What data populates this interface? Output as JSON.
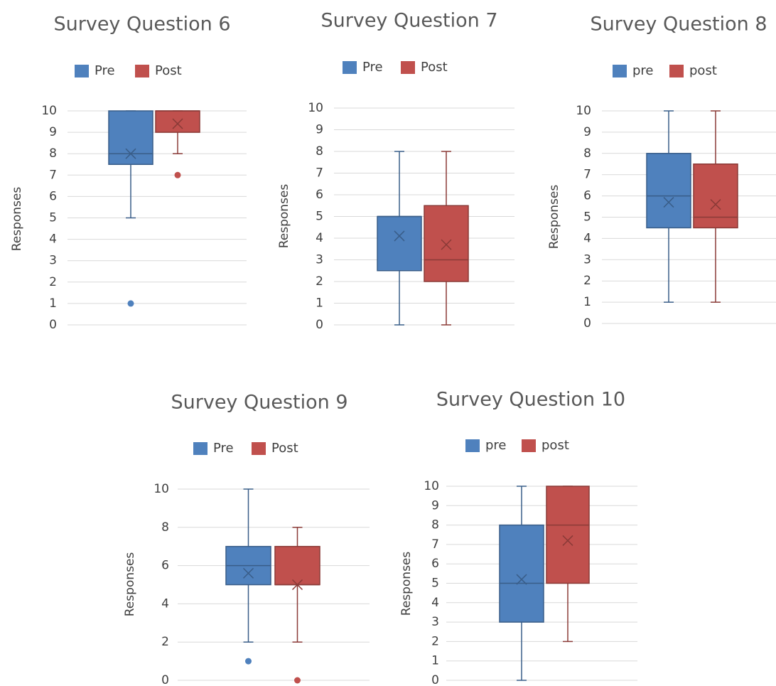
{
  "colors": {
    "pre": "#4F81BD",
    "post": "#C0504D",
    "grid": "#D9D9D9"
  },
  "chart_data": [
    {
      "type": "boxplot",
      "title": "Survey Question 6",
      "ylabel": "Responses",
      "ylim": [
        0,
        10
      ],
      "yticks": [
        "0",
        "1",
        "2",
        "3",
        "4",
        "5",
        "6",
        "7",
        "8",
        "9",
        "10"
      ],
      "legend": "top",
      "grid": true,
      "series": [
        {
          "name": "Pre",
          "min": 5,
          "q1": 7.5,
          "median": 8,
          "q3": 10,
          "max": 10,
          "mean": 8,
          "outliers": [
            1
          ]
        },
        {
          "name": "Post",
          "min": 8,
          "q1": 9,
          "median": 10,
          "q3": 10,
          "max": 10,
          "mean": 9.4,
          "outliers": [
            7
          ]
        }
      ]
    },
    {
      "type": "boxplot",
      "title": "Survey Question 7",
      "ylabel": "Responses",
      "ylim": [
        0,
        10
      ],
      "yticks": [
        "0",
        "1",
        "2",
        "3",
        "4",
        "5",
        "6",
        "7",
        "8",
        "9",
        "10"
      ],
      "legend": "top",
      "grid": true,
      "series": [
        {
          "name": "Pre",
          "min": 0,
          "q1": 2.5,
          "median": 5,
          "q3": 5,
          "max": 8,
          "mean": 4.1,
          "outliers": []
        },
        {
          "name": "Post",
          "min": 0,
          "q1": 2,
          "median": 3,
          "q3": 5.5,
          "max": 8,
          "mean": 3.7,
          "outliers": []
        }
      ]
    },
    {
      "type": "boxplot",
      "title": "Survey Question 8",
      "ylabel": "Responses",
      "ylim": [
        0,
        10
      ],
      "yticks": [
        "0",
        "1",
        "2",
        "3",
        "4",
        "5",
        "6",
        "7",
        "8",
        "9",
        "10"
      ],
      "legend": "top",
      "grid": true,
      "series": [
        {
          "name": "pre",
          "min": 1,
          "q1": 4.5,
          "median": 6,
          "q3": 8,
          "max": 10,
          "mean": 5.7,
          "outliers": []
        },
        {
          "name": "post",
          "min": 1,
          "q1": 4.5,
          "median": 5,
          "q3": 7.5,
          "max": 10,
          "mean": 5.6,
          "outliers": []
        }
      ]
    },
    {
      "type": "boxplot",
      "title": "Survey Question 9",
      "ylabel": "Responses",
      "ylim": [
        0,
        10
      ],
      "yticks": [
        "0",
        "2",
        "4",
        "6",
        "8",
        "10"
      ],
      "legend": "top",
      "grid": true,
      "series": [
        {
          "name": "Pre",
          "min": 2,
          "q1": 5,
          "median": 6,
          "q3": 7,
          "max": 10,
          "mean": 5.6,
          "outliers": [
            1
          ]
        },
        {
          "name": "Post",
          "min": 2,
          "q1": 5,
          "median": 5,
          "q3": 7,
          "max": 8,
          "mean": 5,
          "outliers": [
            0
          ]
        }
      ]
    },
    {
      "type": "boxplot",
      "title": "Survey Question 10",
      "ylabel": "Responses",
      "ylim": [
        0,
        10
      ],
      "yticks": [
        "0",
        "1",
        "2",
        "3",
        "4",
        "5",
        "6",
        "7",
        "8",
        "9",
        "10"
      ],
      "legend": "top",
      "grid": true,
      "series": [
        {
          "name": "pre",
          "min": 0,
          "q1": 3,
          "median": 5,
          "q3": 8,
          "max": 10,
          "mean": 5.2,
          "outliers": []
        },
        {
          "name": "post",
          "min": 2,
          "q1": 5,
          "median": 8,
          "q3": 10,
          "max": 10,
          "mean": 7.2,
          "outliers": []
        }
      ]
    }
  ]
}
